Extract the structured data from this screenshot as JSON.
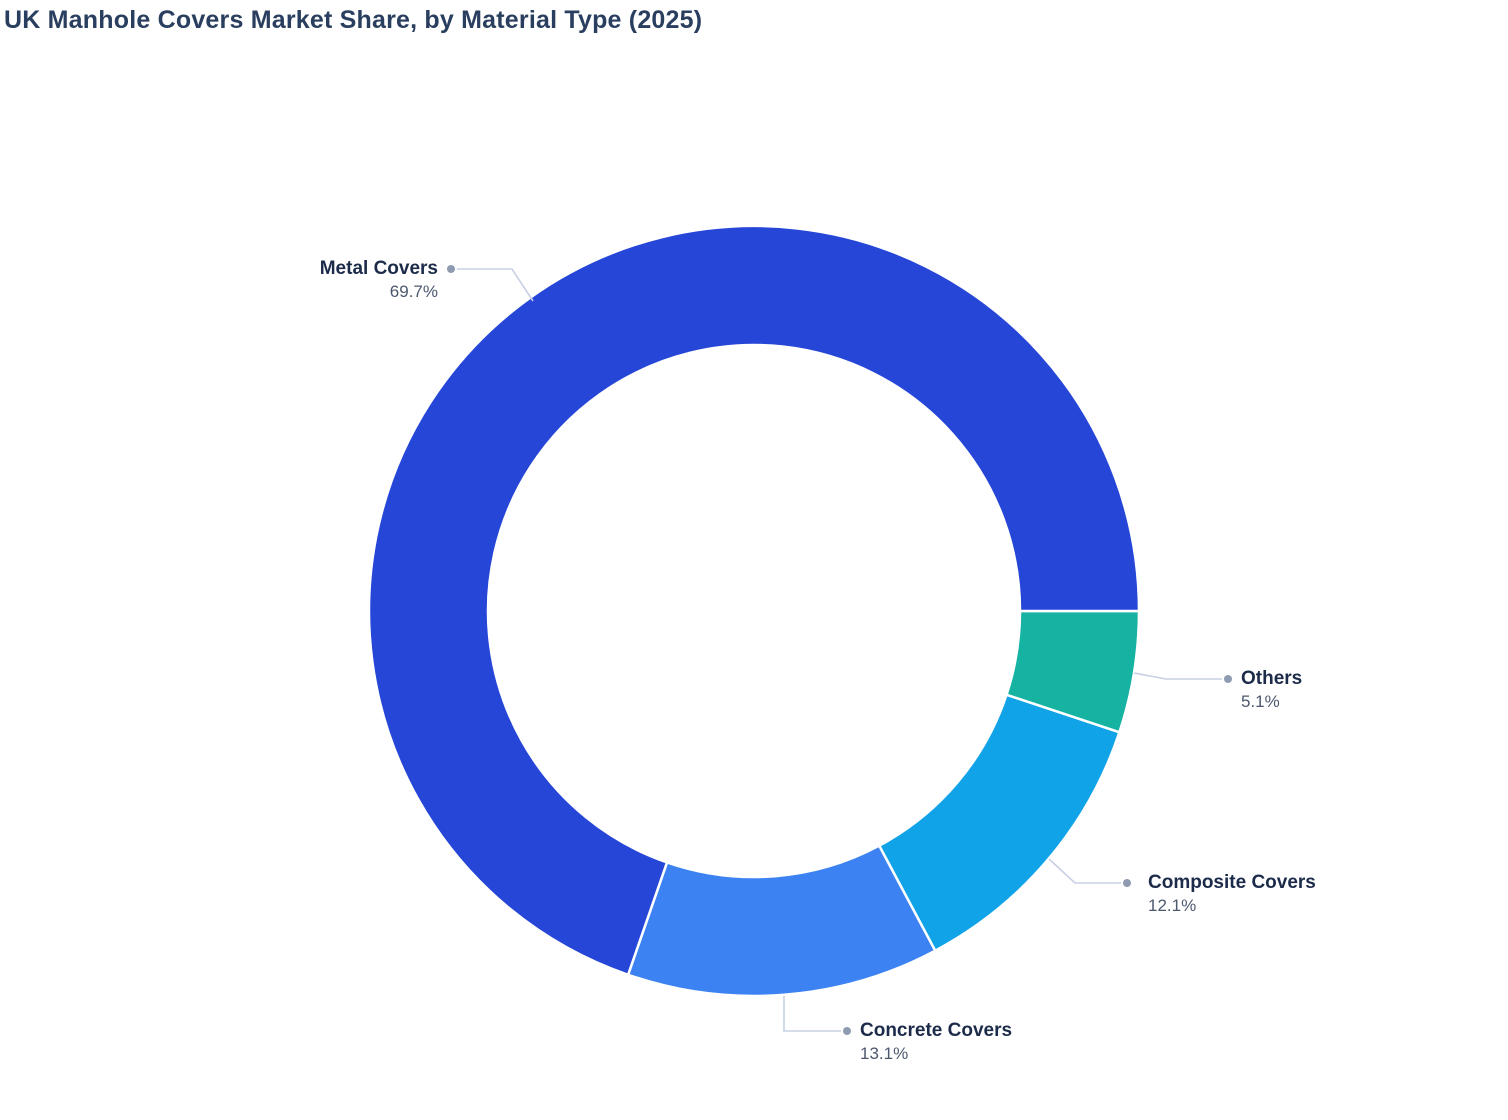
{
  "title": "UK Manhole Covers Market Share, by Material Type (2025)",
  "chart_data": {
    "type": "pie",
    "subtype": "donut",
    "title": "UK Manhole Covers Market Share, by Material Type (2025)",
    "labels": [
      "Metal Covers",
      "Concrete Covers",
      "Composite Covers",
      "Others"
    ],
    "values": [
      69.7,
      13.1,
      12.1,
      5.1
    ],
    "value_labels": [
      "69.7%",
      "13.1%",
      "12.1%",
      "5.1%"
    ],
    "unit": "%",
    "colors": [
      "#2646d8",
      "#3c82f2",
      "#11a3e7",
      "#16b3a3"
    ],
    "hole_ratio": 0.69,
    "legend_position": "none",
    "grid": false,
    "title_color": "#2a3f5f",
    "label_name_color": "#1c2b4a",
    "label_pct_color": "#4b586e",
    "leader_line_color": "#c7d0e4",
    "leader_dot_color": "#8f9bb0",
    "background_color": "#ffffff"
  }
}
